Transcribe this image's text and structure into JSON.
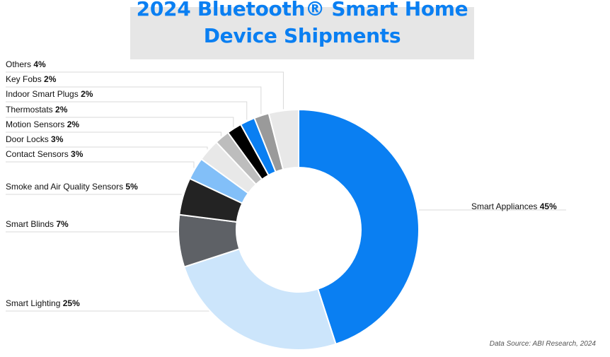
{
  "title": {
    "line1": "2024 Bluetooth® Smart Home",
    "line2": "Device Shipments"
  },
  "source": "Data Source: ABI Research, 2024",
  "colors": {
    "title": "#0a7ff2",
    "title_background": "#e6e6e6",
    "leader_line": "#d9d9d9"
  },
  "chart_data": {
    "type": "pie",
    "style": "donut",
    "start": "top, clockwise",
    "slices": [
      {
        "label": "Smart Appliances",
        "value": 45,
        "value_label": "45%",
        "color": "#0a7ff2",
        "label_side": "right"
      },
      {
        "label": "Smart Lighting",
        "value": 25,
        "value_label": "25%",
        "color": "#cce5fb",
        "label_side": "left"
      },
      {
        "label": "Smart Blinds",
        "value": 7,
        "value_label": "7%",
        "color": "#5e6166",
        "label_side": "left"
      },
      {
        "label": "Smoke and Air Quality Sensors",
        "value": 5,
        "value_label": "5%",
        "color": "#232323",
        "label_side": "left"
      },
      {
        "label": "Contact Sensors",
        "value": 3,
        "value_label": "3%",
        "color": "#82bff8",
        "label_side": "left"
      },
      {
        "label": "Door Locks",
        "value": 3,
        "value_label": "3%",
        "color": "#e8e8e8",
        "label_side": "left"
      },
      {
        "label": "Motion Sensors",
        "value": 2,
        "value_label": "2%",
        "color": "#bdbdbd",
        "label_side": "left"
      },
      {
        "label": "Thermostats",
        "value": 2,
        "value_label": "2%",
        "color": "#000000",
        "label_side": "left"
      },
      {
        "label": "Indoor Smart Plugs",
        "value": 2,
        "value_label": "2%",
        "color": "#0a7ff2",
        "label_side": "left"
      },
      {
        "label": "Key Fobs",
        "value": 2,
        "value_label": "2%",
        "color": "#9a9a9a",
        "label_side": "left"
      },
      {
        "label": "Others",
        "value": 4,
        "value_label": "4%",
        "color": "#e8e8e8",
        "label_side": "left"
      }
    ]
  }
}
